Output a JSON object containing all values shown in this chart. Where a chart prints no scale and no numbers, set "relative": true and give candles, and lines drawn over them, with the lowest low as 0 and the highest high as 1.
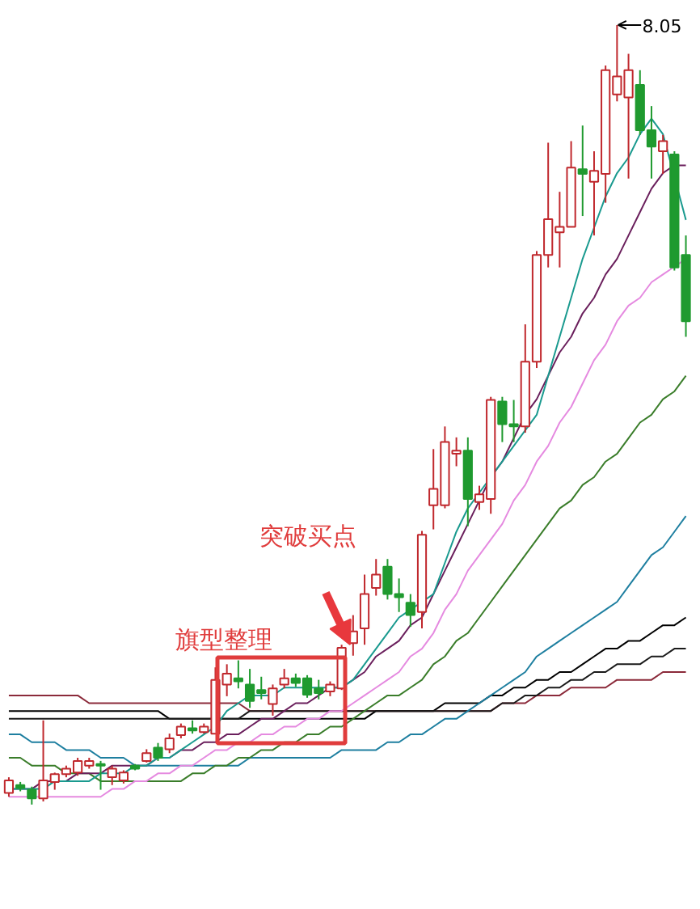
{
  "chart_data": {
    "type": "candlestick",
    "relative": true,
    "categories": [
      null,
      null,
      null,
      null,
      null,
      null,
      null,
      null,
      null,
      null,
      null,
      null,
      null,
      null,
      null,
      null,
      null,
      null,
      null,
      null,
      null,
      null,
      null,
      null,
      null,
      null,
      null,
      null,
      null,
      null,
      null,
      null,
      null,
      null,
      null,
      null,
      null,
      null,
      null,
      null,
      null,
      null,
      null,
      null,
      null,
      null,
      null,
      null,
      null,
      null,
      null,
      null,
      null,
      null,
      null,
      null,
      null,
      null,
      null,
      null
    ],
    "colors": [
      "#c0282d",
      "#1f9a2f",
      "#1f9a2f",
      "#c0282d",
      "#c0282d",
      "#c0282d",
      "#c0282d",
      "#c0282d",
      "#1f9a2f",
      "#c0282d",
      "#c0282d",
      "#1f9a2f",
      "#c0282d",
      "#1f9a2f",
      "#c0282d",
      "#c0282d",
      "#1f9a2f",
      "#c0282d",
      "#c0282d",
      "#c0282d",
      "#1f9a2f",
      "#1f9a2f",
      "#1f9a2f",
      "#c0282d",
      "#c0282d",
      "#1f9a2f",
      "#1f9a2f",
      "#1f9a2f",
      "#c0282d",
      "#c0282d",
      "#c0282d",
      "#c0282d",
      "#c0282d",
      "#1f9a2f",
      "#1f9a2f",
      "#1f9a2f",
      "#c0282d",
      "#c0282d",
      "#c0282d",
      "#c0282d",
      "#1f9a2f",
      "#c0282d",
      "#c0282d",
      "#1f9a2f",
      "#1f9a2f",
      "#c0282d",
      "#c0282d",
      "#c0282d",
      "#c0282d",
      "#c0282d",
      "#1f9a2f",
      "#c0282d",
      "#c0282d",
      "#c0282d",
      "#c0282d",
      "#1f9a2f",
      "#1f9a2f",
      "#c0282d",
      "#1f9a2f",
      "#1f9a2f"
    ],
    "ohlc": [
      [
        0.015,
        0.035,
        0.01,
        0.031
      ],
      [
        0.025,
        0.029,
        0.017,
        0.021
      ],
      [
        0.019,
        0.023,
        0,
        0.008
      ],
      [
        0.008,
        0.108,
        0.004,
        0.031
      ],
      [
        0.029,
        0.041,
        0.019,
        0.039
      ],
      [
        0.039,
        0.05,
        0.035,
        0.046
      ],
      [
        0.041,
        0.06,
        0.037,
        0.056
      ],
      [
        0.05,
        0.06,
        0.046,
        0.056
      ],
      [
        0.052,
        0.056,
        0.019,
        0.05
      ],
      [
        0.035,
        0.05,
        0.025,
        0.046
      ],
      [
        0.031,
        0.044,
        0.027,
        0.041
      ],
      [
        0.05,
        0.052,
        0.044,
        0.046
      ],
      [
        0.056,
        0.071,
        0.054,
        0.066
      ],
      [
        0.073,
        0.079,
        0.056,
        0.06
      ],
      [
        0.071,
        0.091,
        0.066,
        0.085
      ],
      [
        0.089,
        0.104,
        0.085,
        0.1
      ],
      [
        0.098,
        0.108,
        0.091,
        0.095
      ],
      [
        0.093,
        0.104,
        0.091,
        0.1
      ],
      [
        0.091,
        0.176,
        0.091,
        0.16
      ],
      [
        0.154,
        0.18,
        0.139,
        0.168
      ],
      [
        0.162,
        0.185,
        0.149,
        0.158
      ],
      [
        0.154,
        0.174,
        0.124,
        0.133
      ],
      [
        0.147,
        0.164,
        0.135,
        0.143
      ],
      [
        0.129,
        0.154,
        0.114,
        0.149
      ],
      [
        0.154,
        0.174,
        0.149,
        0.162
      ],
      [
        0.162,
        0.168,
        0.151,
        0.156
      ],
      [
        0.162,
        0.166,
        0.137,
        0.141
      ],
      [
        0.149,
        0.16,
        0.135,
        0.143
      ],
      [
        0.145,
        0.158,
        0.139,
        0.154
      ],
      [
        0.149,
        0.205,
        0.147,
        0.201
      ],
      [
        0.207,
        0.243,
        0.191,
        0.222
      ],
      [
        0.226,
        0.295,
        0.205,
        0.27
      ],
      [
        0.278,
        0.315,
        0.268,
        0.295
      ],
      [
        0.305,
        0.315,
        0.263,
        0.27
      ],
      [
        0.27,
        0.29,
        0.247,
        0.266
      ],
      [
        0.259,
        0.27,
        0.228,
        0.243
      ],
      [
        0.247,
        0.351,
        0.226,
        0.346
      ],
      [
        0.384,
        0.456,
        0.353,
        0.405
      ],
      [
        0.384,
        0.485,
        0.38,
        0.465
      ],
      [
        0.45,
        0.471,
        0.434,
        0.454
      ],
      [
        0.454,
        0.471,
        0.357,
        0.392
      ],
      [
        0.388,
        0.409,
        0.378,
        0.398
      ],
      [
        0.392,
        0.523,
        0.373,
        0.519
      ],
      [
        0.517,
        0.523,
        0.465,
        0.488
      ],
      [
        0.488,
        0.519,
        0.465,
        0.485
      ],
      [
        0.485,
        0.616,
        0.477,
        0.568
      ],
      [
        0.568,
        0.71,
        0.56,
        0.705
      ],
      [
        0.705,
        0.849,
        0.689,
        0.751
      ],
      [
        0.734,
        0.786,
        0.689,
        0.741
      ],
      [
        0.741,
        0.851,
        0.741,
        0.817
      ],
      [
        0.815,
        0.871,
        0.755,
        0.809
      ],
      [
        0.799,
        0.838,
        0.73,
        0.813
      ],
      [
        0.809,
        0.948,
        0.772,
        0.942
      ],
      [
        0.911,
        1,
        0.902,
        0.934
      ],
      [
        0.907,
        0.963,
        0.803,
        0.942
      ],
      [
        0.923,
        0.942,
        0.859,
        0.865
      ],
      [
        0.865,
        0.896,
        0.803,
        0.844
      ],
      [
        0.838,
        0.859,
        0.809,
        0.851
      ],
      [
        0.834,
        0.838,
        0.685,
        0.689
      ],
      [
        0.705,
        0.73,
        0.6,
        0.62
      ]
    ],
    "series": [
      {
        "type": "line",
        "color": "#8b2a3a",
        "values": [
          0.14,
          0.14,
          0.14,
          0.14,
          0.14,
          0.14,
          0.14,
          0.13,
          0.13,
          0.13,
          0.13,
          0.13,
          0.13,
          0.13,
          0.13,
          0.13,
          0.13,
          0.13,
          0.13,
          0.13,
          0.13,
          0.12,
          0.12,
          0.12,
          0.12,
          0.12,
          0.12,
          0.12,
          0.12,
          0.12,
          0.12,
          0.12,
          0.12,
          0.12,
          0.12,
          0.12,
          0.12,
          0.12,
          0.12,
          0.12,
          0.12,
          0.12,
          0.12,
          0.13,
          0.13,
          0.13,
          0.14,
          0.14,
          0.14,
          0.15,
          0.15,
          0.15,
          0.15,
          0.16,
          0.16,
          0.16,
          0.16,
          0.17,
          0.17,
          0.17
        ]
      },
      {
        "type": "line",
        "color": "#000000",
        "values": [
          0.12,
          0.12,
          0.12,
          0.12,
          0.12,
          0.12,
          0.12,
          0.12,
          0.12,
          0.12,
          0.12,
          0.12,
          0.12,
          0.12,
          0.11,
          0.11,
          0.11,
          0.11,
          0.11,
          0.11,
          0.11,
          0.11,
          0.11,
          0.11,
          0.11,
          0.11,
          0.11,
          0.11,
          0.11,
          0.11,
          0.11,
          0.11,
          0.12,
          0.12,
          0.12,
          0.12,
          0.12,
          0.12,
          0.13,
          0.13,
          0.13,
          0.13,
          0.14,
          0.14,
          0.15,
          0.15,
          0.16,
          0.16,
          0.17,
          0.17,
          0.18,
          0.19,
          0.2,
          0.2,
          0.21,
          0.21,
          0.22,
          0.23,
          0.23,
          0.24
        ]
      },
      {
        "type": "line",
        "color": "#1a1a1a",
        "values": [
          0.11,
          0.11,
          0.11,
          0.11,
          0.11,
          0.11,
          0.11,
          0.11,
          0.11,
          0.11,
          0.11,
          0.11,
          0.11,
          0.11,
          0.11,
          0.11,
          0.11,
          0.11,
          0.11,
          0.11,
          0.11,
          0.12,
          0.12,
          0.12,
          0.12,
          0.12,
          0.12,
          0.12,
          0.12,
          0.12,
          0.12,
          0.12,
          0.12,
          0.12,
          0.12,
          0.12,
          0.12,
          0.12,
          0.12,
          0.12,
          0.12,
          0.12,
          0.12,
          0.13,
          0.13,
          0.14,
          0.14,
          0.15,
          0.15,
          0.16,
          0.16,
          0.17,
          0.17,
          0.18,
          0.18,
          0.18,
          0.19,
          0.19,
          0.2,
          0.2
        ]
      },
      {
        "type": "line",
        "color": "#1e7fa0",
        "values": [
          0.09,
          0.09,
          0.08,
          0.08,
          0.08,
          0.07,
          0.07,
          0.07,
          0.06,
          0.06,
          0.06,
          0.05,
          0.05,
          0.05,
          0.05,
          0.05,
          0.05,
          0.05,
          0.05,
          0.05,
          0.05,
          0.06,
          0.06,
          0.06,
          0.06,
          0.06,
          0.06,
          0.06,
          0.06,
          0.07,
          0.07,
          0.07,
          0.07,
          0.08,
          0.08,
          0.09,
          0.09,
          0.1,
          0.11,
          0.11,
          0.12,
          0.13,
          0.14,
          0.15,
          0.16,
          0.17,
          0.19,
          0.2,
          0.21,
          0.22,
          0.23,
          0.24,
          0.25,
          0.26,
          0.28,
          0.3,
          0.32,
          0.33,
          0.35,
          0.37
        ]
      },
      {
        "type": "line",
        "color": "#3a7d2a",
        "values": [
          0.06,
          0.06,
          0.05,
          0.05,
          0.05,
          0.04,
          0.04,
          0.04,
          0.03,
          0.03,
          0.03,
          0.03,
          0.03,
          0.03,
          0.03,
          0.03,
          0.04,
          0.04,
          0.05,
          0.05,
          0.06,
          0.06,
          0.07,
          0.07,
          0.08,
          0.08,
          0.09,
          0.09,
          0.1,
          0.1,
          0.11,
          0.12,
          0.13,
          0.14,
          0.14,
          0.15,
          0.16,
          0.18,
          0.19,
          0.21,
          0.22,
          0.24,
          0.26,
          0.28,
          0.3,
          0.32,
          0.34,
          0.36,
          0.38,
          0.39,
          0.41,
          0.42,
          0.44,
          0.45,
          0.47,
          0.49,
          0.5,
          0.52,
          0.53,
          0.55
        ]
      },
      {
        "type": "line",
        "color": "#e58ae0",
        "values": [
          0.01,
          0.01,
          0.01,
          0.01,
          0.01,
          0.01,
          0.01,
          0.01,
          0.01,
          0.02,
          0.02,
          0.03,
          0.03,
          0.04,
          0.04,
          0.05,
          0.05,
          0.06,
          0.07,
          0.07,
          0.08,
          0.08,
          0.09,
          0.09,
          0.1,
          0.1,
          0.11,
          0.11,
          0.12,
          0.12,
          0.13,
          0.14,
          0.15,
          0.16,
          0.17,
          0.19,
          0.2,
          0.22,
          0.25,
          0.27,
          0.3,
          0.32,
          0.34,
          0.36,
          0.39,
          0.41,
          0.44,
          0.46,
          0.49,
          0.51,
          0.54,
          0.57,
          0.59,
          0.62,
          0.64,
          0.65,
          0.67,
          0.68,
          0.69,
          0.7
        ]
      },
      {
        "type": "line",
        "color": "#6a1f5c",
        "values": [
          0.02,
          0.02,
          0.02,
          0.03,
          0.03,
          0.03,
          0.04,
          0.04,
          0.04,
          0.05,
          0.05,
          0.05,
          0.05,
          0.06,
          0.06,
          0.07,
          0.07,
          0.08,
          0.08,
          0.09,
          0.09,
          0.1,
          0.11,
          0.11,
          0.12,
          0.13,
          0.13,
          0.14,
          0.15,
          0.15,
          0.16,
          0.17,
          0.19,
          0.2,
          0.21,
          0.23,
          0.24,
          0.27,
          0.3,
          0.33,
          0.36,
          0.39,
          0.42,
          0.44,
          0.47,
          0.5,
          0.52,
          0.55,
          0.58,
          0.6,
          0.63,
          0.65,
          0.68,
          0.7,
          0.73,
          0.76,
          0.79,
          0.81,
          0.82,
          0.82
        ]
      },
      {
        "type": "line",
        "color": "#1a9a8f",
        "values": [
          0.02,
          0.02,
          0.02,
          0.02,
          0.03,
          0.03,
          0.03,
          0.03,
          0.04,
          0.04,
          0.04,
          0.05,
          0.05,
          0.06,
          0.06,
          0.07,
          0.08,
          0.09,
          0.1,
          0.12,
          0.13,
          0.14,
          0.14,
          0.14,
          0.15,
          0.15,
          0.15,
          0.15,
          0.15,
          0.15,
          0.16,
          0.18,
          0.2,
          0.22,
          0.24,
          0.25,
          0.26,
          0.27,
          0.31,
          0.35,
          0.38,
          0.4,
          0.42,
          0.44,
          0.46,
          0.48,
          0.5,
          0.55,
          0.6,
          0.65,
          0.7,
          0.74,
          0.78,
          0.81,
          0.83,
          0.86,
          0.88,
          0.86,
          null,
          0.75
        ]
      }
    ],
    "annotations": [
      "8.05",
      "突破买点",
      "旗型整理"
    ]
  }
}
